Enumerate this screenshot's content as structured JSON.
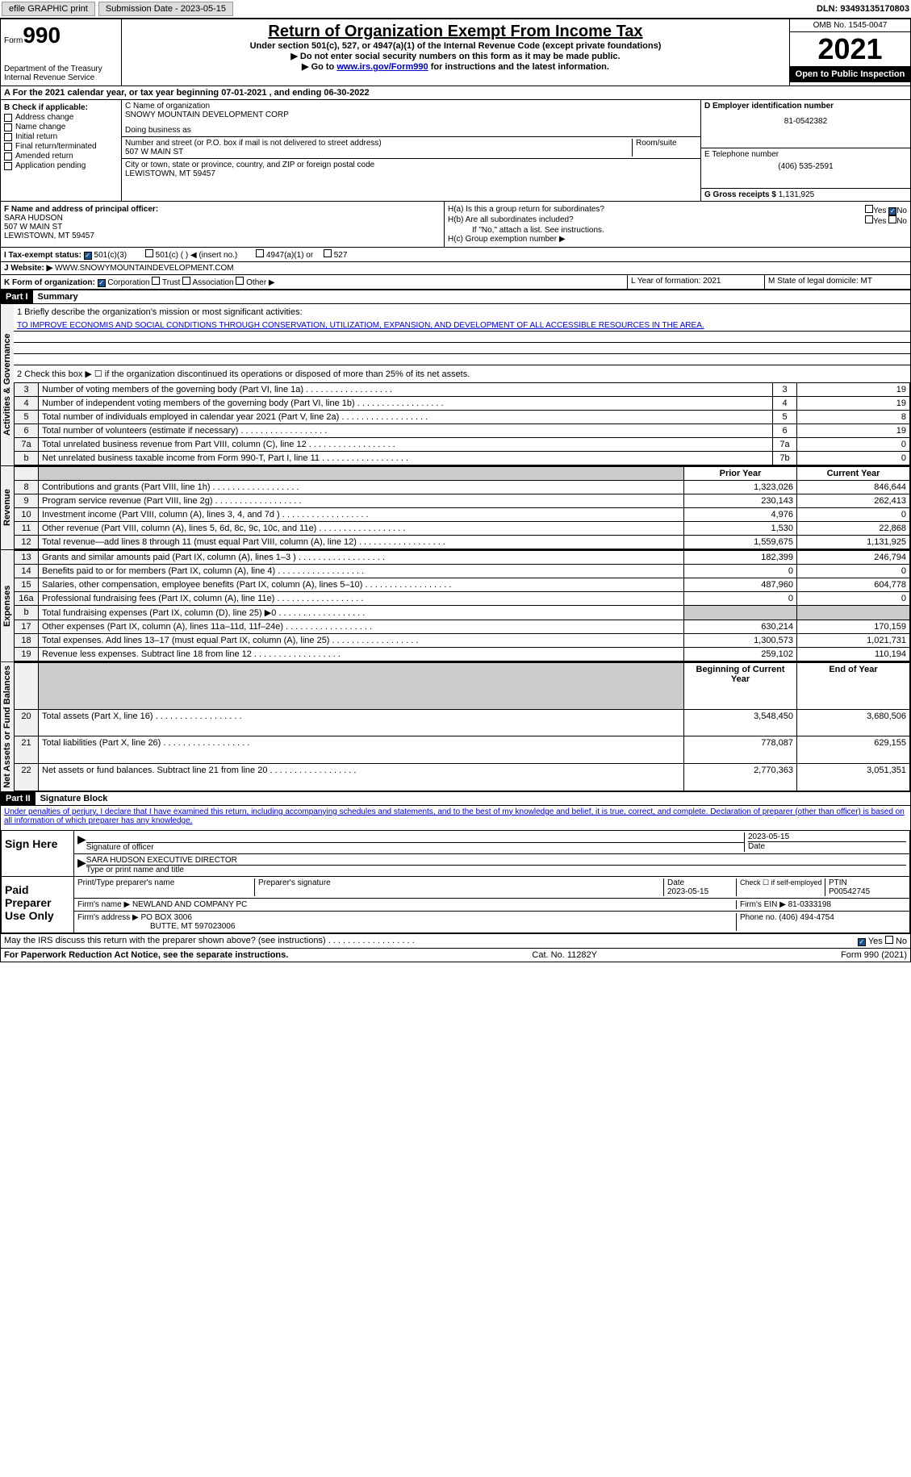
{
  "topbar": {
    "efile": "efile GRAPHIC print",
    "submission": "Submission Date - 2023-05-15",
    "dln": "DLN: 93493135170803"
  },
  "header": {
    "form_label": "Form",
    "form_number": "990",
    "title": "Return of Organization Exempt From Income Tax",
    "subtitle1": "Under section 501(c), 527, or 4947(a)(1) of the Internal Revenue Code (except private foundations)",
    "subtitle2": "▶ Do not enter social security numbers on this form as it may be made public.",
    "subtitle3_pre": "▶ Go to ",
    "subtitle3_link": "www.irs.gov/Form990",
    "subtitle3_post": " for instructions and the latest information.",
    "dept": "Department of the Treasury",
    "irs": "Internal Revenue Service",
    "omb": "OMB No. 1545-0047",
    "year": "2021",
    "inspection": "Open to Public Inspection"
  },
  "section_a": "A For the 2021 calendar year, or tax year beginning 07-01-2021  , and ending 06-30-2022",
  "section_b": {
    "label": "B Check if applicable:",
    "opts": [
      "Address change",
      "Name change",
      "Initial return",
      "Final return/terminated",
      "Amended return",
      "Application pending"
    ]
  },
  "section_c": {
    "name_label": "C Name of organization",
    "name": "SNOWY MOUNTAIN DEVELOPMENT CORP",
    "dba_label": "Doing business as",
    "street_label": "Number and street (or P.O. box if mail is not delivered to street address)",
    "room_label": "Room/suite",
    "street": "507 W MAIN ST",
    "city_label": "City or town, state or province, country, and ZIP or foreign postal code",
    "city": "LEWISTOWN, MT  59457"
  },
  "section_d": {
    "label": "D Employer identification number",
    "value": "81-0542382"
  },
  "section_e": {
    "label": "E Telephone number",
    "value": "(406) 535-2591"
  },
  "section_g": {
    "label": "G Gross receipts $",
    "value": "1,131,925"
  },
  "section_f": {
    "label": "F Name and address of principal officer:",
    "name": "SARA HUDSON",
    "street": "507 W MAIN ST",
    "city": "LEWISTOWN, MT  59457"
  },
  "section_h": {
    "a": "H(a)  Is this a group return for subordinates?",
    "b": "H(b)  Are all subordinates included?",
    "b_note": "If \"No,\" attach a list. See instructions.",
    "c": "H(c)  Group exemption number ▶",
    "yes": "Yes",
    "no": "No"
  },
  "section_i": {
    "label": "I  Tax-exempt status:",
    "opt1": "501(c)(3)",
    "opt2": "501(c) (  ) ◀ (insert no.)",
    "opt3": "4947(a)(1) or",
    "opt4": "527"
  },
  "section_j": {
    "label": "J  Website: ▶",
    "value": "WWW.SNOWYMOUNTAINDEVELOPMENT.COM"
  },
  "section_k": {
    "label": "K Form of organization:",
    "opts": [
      "Corporation",
      "Trust",
      "Association",
      "Other ▶"
    ]
  },
  "section_l": {
    "label": "L Year of formation: 2021"
  },
  "section_m": {
    "label": "M State of legal domicile: MT"
  },
  "part1": {
    "header": "Part I",
    "title": "Summary",
    "vert_labels": [
      "Activities & Governance",
      "Revenue",
      "Expenses",
      "Net Assets or Fund Balances"
    ],
    "line1_label": "1  Briefly describe the organization's mission or most significant activities:",
    "mission": "TO IMPROVE ECONOMIS AND SOCIAL CONDITIONS THROUGH CONSERVATION, UTILIZATIOM, EXPANSION, AND DEVELOPMENT OF ALL ACCESSIBLE RESOURCES IN THE AREA.",
    "line2": "2   Check this box ▶ ☐ if the organization discontinued its operations or disposed of more than 25% of its net assets.",
    "rows_ag": [
      {
        "n": "3",
        "label": "Number of voting members of the governing body (Part VI, line 1a)",
        "box": "3",
        "val": "19"
      },
      {
        "n": "4",
        "label": "Number of independent voting members of the governing body (Part VI, line 1b)",
        "box": "4",
        "val": "19"
      },
      {
        "n": "5",
        "label": "Total number of individuals employed in calendar year 2021 (Part V, line 2a)",
        "box": "5",
        "val": "8"
      },
      {
        "n": "6",
        "label": "Total number of volunteers (estimate if necessary)",
        "box": "6",
        "val": "19"
      },
      {
        "n": "7a",
        "label": "Total unrelated business revenue from Part VIII, column (C), line 12",
        "box": "7a",
        "val": "0"
      },
      {
        "n": "b",
        "label": "Net unrelated business taxable income from Form 990-T, Part I, line 11",
        "box": "7b",
        "val": "0"
      }
    ],
    "col_headers": {
      "prior": "Prior Year",
      "current": "Current Year",
      "begin": "Beginning of Current Year",
      "end": "End of Year"
    },
    "rows_rev": [
      {
        "n": "8",
        "label": "Contributions and grants (Part VIII, line 1h)",
        "py": "1,323,026",
        "cy": "846,644"
      },
      {
        "n": "9",
        "label": "Program service revenue (Part VIII, line 2g)",
        "py": "230,143",
        "cy": "262,413"
      },
      {
        "n": "10",
        "label": "Investment income (Part VIII, column (A), lines 3, 4, and 7d )",
        "py": "4,976",
        "cy": "0"
      },
      {
        "n": "11",
        "label": "Other revenue (Part VIII, column (A), lines 5, 6d, 8c, 9c, 10c, and 11e)",
        "py": "1,530",
        "cy": "22,868"
      },
      {
        "n": "12",
        "label": "Total revenue—add lines 8 through 11 (must equal Part VIII, column (A), line 12)",
        "py": "1,559,675",
        "cy": "1,131,925"
      }
    ],
    "rows_exp": [
      {
        "n": "13",
        "label": "Grants and similar amounts paid (Part IX, column (A), lines 1–3 )",
        "py": "182,399",
        "cy": "246,794"
      },
      {
        "n": "14",
        "label": "Benefits paid to or for members (Part IX, column (A), line 4)",
        "py": "0",
        "cy": "0"
      },
      {
        "n": "15",
        "label": "Salaries, other compensation, employee benefits (Part IX, column (A), lines 5–10)",
        "py": "487,960",
        "cy": "604,778"
      },
      {
        "n": "16a",
        "label": "Professional fundraising fees (Part IX, column (A), line 11e)",
        "py": "0",
        "cy": "0"
      },
      {
        "n": "b",
        "label": "Total fundraising expenses (Part IX, column (D), line 25) ▶0",
        "py": "",
        "cy": "",
        "shaded": true
      },
      {
        "n": "17",
        "label": "Other expenses (Part IX, column (A), lines 11a–11d, 11f–24e)",
        "py": "630,214",
        "cy": "170,159"
      },
      {
        "n": "18",
        "label": "Total expenses. Add lines 13–17 (must equal Part IX, column (A), line 25)",
        "py": "1,300,573",
        "cy": "1,021,731"
      },
      {
        "n": "19",
        "label": "Revenue less expenses. Subtract line 18 from line 12",
        "py": "259,102",
        "cy": "110,194"
      }
    ],
    "rows_net": [
      {
        "n": "20",
        "label": "Total assets (Part X, line 16)",
        "py": "3,548,450",
        "cy": "3,680,506"
      },
      {
        "n": "21",
        "label": "Total liabilities (Part X, line 26)",
        "py": "778,087",
        "cy": "629,155"
      },
      {
        "n": "22",
        "label": "Net assets or fund balances. Subtract line 21 from line 20",
        "py": "2,770,363",
        "cy": "3,051,351"
      }
    ]
  },
  "part2": {
    "header": "Part II",
    "title": "Signature Block",
    "penalty": "Under penalties of perjury, I declare that I have examined this return, including accompanying schedules and statements, and to the best of my knowledge and belief, it is true, correct, and complete. Declaration of preparer (other than officer) is based on all information of which preparer has any knowledge.",
    "sign_here": "Sign Here",
    "sig_officer": "Signature of officer",
    "sig_date": "2023-05-15",
    "date_label": "Date",
    "officer_name": "SARA HUDSON  EXECUTIVE DIRECTOR",
    "name_label": "Type or print name and title",
    "paid": "Paid Preparer Use Only",
    "prep_name_label": "Print/Type preparer's name",
    "prep_sig_label": "Preparer's signature",
    "prep_date_label": "Date",
    "prep_date": "2023-05-15",
    "check_self": "Check ☐ if self-employed",
    "ptin_label": "PTIN",
    "ptin": "P00542745",
    "firm_name_label": "Firm's name    ▶",
    "firm_name": "NEWLAND AND COMPANY PC",
    "firm_ein_label": "Firm's EIN ▶",
    "firm_ein": "81-0333198",
    "firm_addr_label": "Firm's address ▶",
    "firm_addr1": "PO BOX 3006",
    "firm_addr2": "BUTTE, MT  597023006",
    "phone_label": "Phone no.",
    "phone": "(406) 494-4754",
    "discuss": "May the IRS discuss this return with the preparer shown above? (see instructions)",
    "yes": "Yes",
    "no": "No"
  },
  "footer": {
    "left": "For Paperwork Reduction Act Notice, see the separate instructions.",
    "center": "Cat. No. 11282Y",
    "right": "Form 990 (2021)"
  }
}
